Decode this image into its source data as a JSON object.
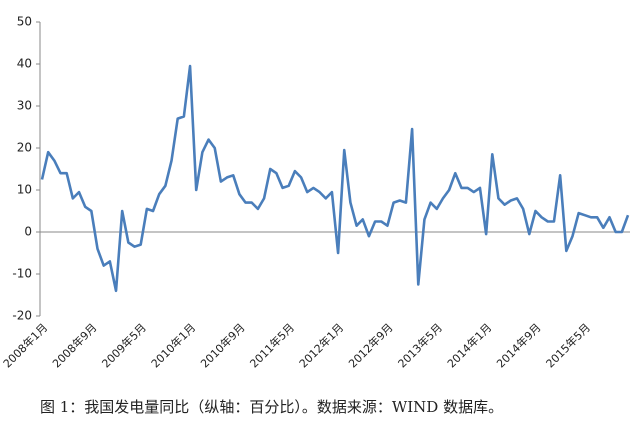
{
  "chart_data": {
    "type": "line",
    "caption": "图 1：我国发电量同比（纵轴：百分比）。数据来源：WIND 数据库。",
    "categories": [
      "2008年1月",
      null,
      null,
      null,
      null,
      null,
      null,
      null,
      "2008年9月",
      null,
      null,
      null,
      null,
      null,
      null,
      null,
      "2009年5月",
      null,
      null,
      null,
      null,
      null,
      null,
      null,
      "2010年1月",
      null,
      null,
      null,
      null,
      null,
      null,
      null,
      "2010年9月",
      null,
      null,
      null,
      null,
      null,
      null,
      null,
      "2011年5月",
      null,
      null,
      null,
      null,
      null,
      null,
      null,
      "2012年1月",
      null,
      null,
      null,
      null,
      null,
      null,
      null,
      "2012年9月",
      null,
      null,
      null,
      null,
      null,
      null,
      null,
      "2013年5月",
      null,
      null,
      null,
      null,
      null,
      null,
      null,
      "2014年1月",
      null,
      null,
      null,
      null,
      null,
      null,
      null,
      "2014年9月",
      null,
      null,
      null,
      null,
      null,
      null,
      null,
      "2015年5月",
      null,
      null,
      null,
      null,
      null,
      null,
      null
    ],
    "series": [
      {
        "color": "#4a7ebb",
        "values": [
          12.5,
          19,
          17,
          14,
          14,
          8,
          9.5,
          6,
          5,
          -4,
          -8,
          -7,
          -14,
          5,
          -2.5,
          -3.5,
          -3,
          5.5,
          5,
          9,
          11,
          17,
          27,
          27.5,
          39.5,
          10,
          19,
          22,
          20,
          12,
          13,
          13.5,
          9,
          7,
          7,
          5.5,
          8,
          15,
          14,
          10.5,
          11,
          14.5,
          13,
          9.5,
          10.5,
          9.5,
          8,
          9.5,
          -5,
          19.5,
          7,
          1.5,
          3,
          -1,
          2.5,
          2.5,
          1.5,
          7,
          7.5,
          7,
          24.5,
          -12.5,
          3,
          7,
          5.5,
          8,
          10,
          14,
          10.5,
          10.5,
          9.5,
          10.5,
          -0.5,
          18.5,
          8,
          6.5,
          7.5,
          8,
          5.5,
          -0.5,
          5,
          3.5,
          2.5,
          2.5,
          13.5,
          -4.5,
          -1,
          4.5,
          4,
          3.5,
          3.5,
          1,
          3.5,
          0,
          0,
          4
        ]
      }
    ],
    "ylim": [
      -20,
      50
    ],
    "yticks": [
      -20,
      -10,
      0,
      10,
      20,
      30,
      40,
      50
    ]
  }
}
